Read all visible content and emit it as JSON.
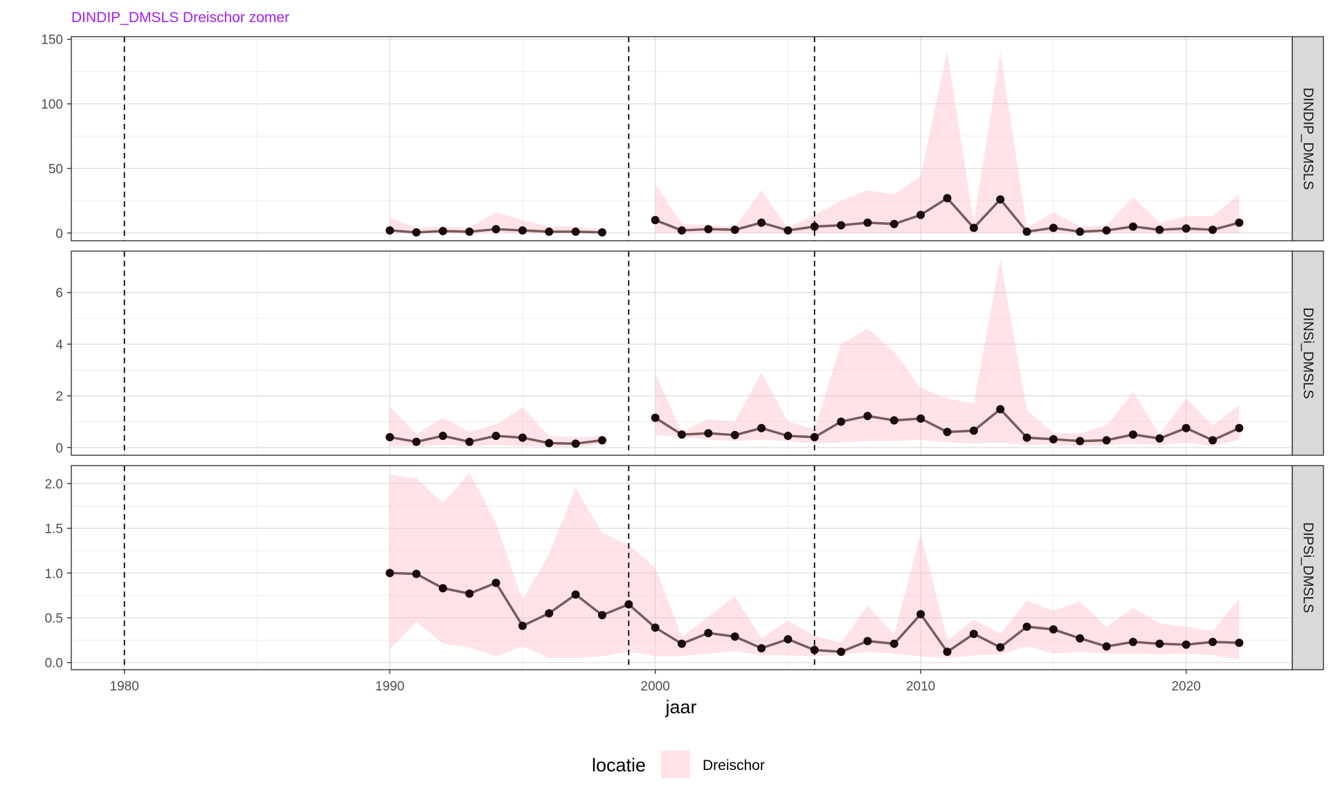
{
  "chart_data": {
    "type": "line",
    "title": "DINDIP_DMSLS Dreischor zomer",
    "xlabel": "jaar",
    "xlim": [
      1978,
      2024
    ],
    "x_ticks": [
      1980,
      1990,
      2000,
      2010,
      2020
    ],
    "vlines": [
      1980,
      1999,
      2006
    ],
    "legend": {
      "title": "locatie",
      "entries": [
        "Dreischor"
      ],
      "position": "bottom"
    },
    "colors": {
      "ribbon": "#ffc0cb",
      "line": "#7a5a5a",
      "point": "#1a0a0a",
      "title": "#a020f0",
      "strip": "#d9d9d9"
    },
    "panels": [
      {
        "label": "DINDIP_DMSLS",
        "ylim": [
          -6,
          152
        ],
        "y_ticks": [
          0,
          50,
          100,
          150
        ],
        "y_tick_labels": [
          "0",
          "50",
          "100",
          "150"
        ],
        "segments": [
          {
            "x": [
              1990,
              1991,
              1992,
              1993,
              1994,
              1995,
              1996,
              1997,
              1998
            ],
            "y": [
              2,
              0.5,
              1.5,
              1,
              3,
              2,
              1,
              1,
              0.5
            ],
            "lower": [
              0,
              0,
              0,
              0,
              0,
              0,
              0,
              0,
              0
            ],
            "upper": [
              12,
              4,
              5,
              4,
              16,
              10,
              5,
              5,
              3
            ]
          },
          {
            "x": [
              2000,
              2001,
              2002,
              2003,
              2004,
              2005,
              2006,
              2007,
              2008,
              2009,
              2010,
              2011,
              2012,
              2013,
              2014,
              2015,
              2016,
              2017,
              2018,
              2019,
              2020,
              2021,
              2022
            ],
            "y": [
              10,
              2,
              3,
              2.5,
              8,
              2,
              5,
              6,
              8,
              7,
              14,
              27,
              4,
              26,
              1,
              4,
              1,
              2,
              5,
              2.5,
              3.5,
              2.5,
              8
            ],
            "lower": [
              0,
              0,
              0,
              0,
              0,
              0,
              0,
              0,
              0,
              0,
              0,
              0,
              0,
              0,
              0,
              0,
              0,
              0,
              0,
              0,
              0,
              0,
              0
            ],
            "upper": [
              38,
              7,
              6,
              5,
              33,
              4,
              14,
              25,
              33,
              30,
              44,
              141,
              8,
              140,
              4,
              16,
              5,
              6,
              28,
              8,
              13,
              13,
              30
            ]
          }
        ]
      },
      {
        "label": "DINSi_DMSLS",
        "ylim": [
          -0.3,
          7.6
        ],
        "y_ticks": [
          0,
          2,
          4,
          6
        ],
        "y_tick_labels": [
          "0",
          "2",
          "4",
          "6"
        ],
        "segments": [
          {
            "x": [
              1990,
              1991,
              1992,
              1993,
              1994,
              1995,
              1996,
              1997,
              1998
            ],
            "y": [
              0.4,
              0.22,
              0.45,
              0.22,
              0.45,
              0.38,
              0.17,
              0.15,
              0.28
            ],
            "lower": [
              0.05,
              0.05,
              0.1,
              0.05,
              0.1,
              0.05,
              0.03,
              0.03,
              0.1
            ],
            "upper": [
              1.6,
              0.5,
              1.15,
              0.6,
              0.9,
              1.55,
              0.45,
              0.4,
              0.45
            ]
          },
          {
            "x": [
              2000,
              2001,
              2002,
              2003,
              2004,
              2005,
              2006,
              2007,
              2008,
              2009,
              2010,
              2011,
              2012,
              2013,
              2014,
              2015,
              2016,
              2017,
              2018,
              2019,
              2020,
              2021,
              2022
            ],
            "y": [
              1.15,
              0.5,
              0.55,
              0.48,
              0.75,
              0.45,
              0.4,
              1.0,
              1.22,
              1.05,
              1.12,
              0.6,
              0.65,
              1.48,
              0.38,
              0.32,
              0.25,
              0.28,
              0.5,
              0.35,
              0.75,
              0.28,
              0.75
            ],
            "lower": [
              0.5,
              0.4,
              0.3,
              0.25,
              0.3,
              0.25,
              0.15,
              0.2,
              0.25,
              0.25,
              0.3,
              0.2,
              0.15,
              0.2,
              0.1,
              0.1,
              0.05,
              0.1,
              0.15,
              0.1,
              0.2,
              0.05,
              0.3
            ],
            "upper": [
              2.85,
              0.6,
              1.1,
              1.0,
              2.9,
              1.0,
              0.7,
              4.0,
              4.6,
              3.7,
              2.3,
              1.9,
              1.7,
              7.3,
              1.45,
              0.55,
              0.55,
              0.85,
              2.15,
              0.5,
              1.9,
              0.85,
              1.65
            ]
          }
        ]
      },
      {
        "label": "DIPSi_DMSLS",
        "ylim": [
          -0.08,
          2.2
        ],
        "y_ticks": [
          0,
          0.5,
          1,
          1.5,
          2
        ],
        "y_tick_labels": [
          "0.0",
          "0.5",
          "1.0",
          "1.5",
          "2.0"
        ],
        "segments": [
          {
            "x": [
              1990,
              1991,
              1992,
              1993,
              1994,
              1995,
              1996,
              1997,
              1998,
              1999,
              2000,
              2001,
              2002,
              2003,
              2004,
              2005,
              2006,
              2007,
              2008,
              2009,
              2010,
              2011,
              2012,
              2013,
              2014,
              2015,
              2016,
              2017,
              2018,
              2019,
              2020,
              2021,
              2022
            ],
            "y": [
              1.0,
              0.99,
              0.83,
              0.77,
              0.89,
              0.41,
              0.55,
              0.76,
              0.53,
              0.65,
              0.39,
              0.21,
              0.33,
              0.29,
              0.16,
              0.26,
              0.14,
              0.12,
              0.24,
              0.21,
              0.54,
              0.12,
              0.32,
              0.17,
              0.4,
              0.37,
              0.27,
              0.18,
              0.23,
              0.21,
              0.2,
              0.23,
              0.22
            ],
            "lower": [
              0.14,
              0.46,
              0.21,
              0.17,
              0.07,
              0.18,
              0.05,
              0.05,
              0.07,
              0.12,
              0.07,
              0.07,
              0.1,
              0.13,
              0.08,
              0.08,
              0.07,
              0.09,
              0.12,
              0.1,
              0.07,
              0.05,
              0.08,
              0.09,
              0.18,
              0.1,
              0.12,
              0.1,
              0.1,
              0.09,
              0.1,
              0.08,
              0.04
            ],
            "upper": [
              2.1,
              2.06,
              1.78,
              2.12,
              1.56,
              0.7,
              1.21,
              1.95,
              1.45,
              1.31,
              1.06,
              0.29,
              0.51,
              0.74,
              0.27,
              0.47,
              0.3,
              0.22,
              0.64,
              0.31,
              1.44,
              0.25,
              0.48,
              0.32,
              0.69,
              0.58,
              0.68,
              0.4,
              0.61,
              0.44,
              0.4,
              0.35,
              0.72
            ]
          }
        ]
      }
    ]
  }
}
